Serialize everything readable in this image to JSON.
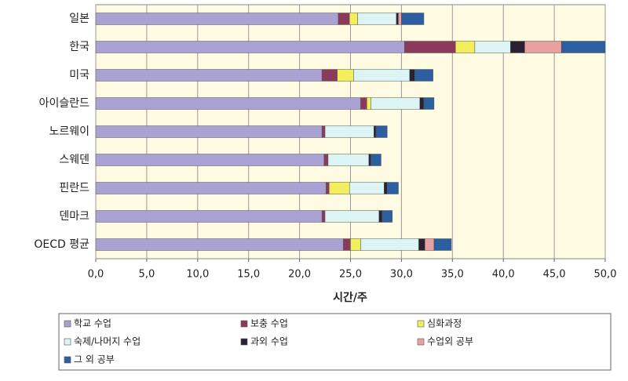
{
  "chart_data": {
    "type": "stacked-bar-horizontal",
    "categories": [
      "일본",
      "한국",
      "미국",
      "아이슬란드",
      "노르웨이",
      "스웨덴",
      "핀란드",
      "덴마크",
      "OECD 평균"
    ],
    "series": [
      {
        "name": "학교 수업",
        "color": "#a9a2d2",
        "values": [
          23.8,
          30.3,
          22.2,
          26.0,
          22.2,
          22.4,
          22.6,
          22.2,
          24.3
        ]
      },
      {
        "name": "보충 수업",
        "color": "#8b3a5c",
        "values": [
          1.1,
          5.0,
          1.5,
          0.6,
          0.3,
          0.4,
          0.3,
          0.3,
          0.7
        ]
      },
      {
        "name": "심화과정",
        "color": "#f3ee5c",
        "values": [
          0.8,
          1.9,
          1.6,
          0.4,
          0,
          0,
          2.0,
          0,
          1.0
        ]
      },
      {
        "name": "숙제/나머지 수업",
        "color": "#dcf4f4",
        "values": [
          3.8,
          3.5,
          5.5,
          4.8,
          4.8,
          4.0,
          3.4,
          5.3,
          5.7
        ]
      },
      {
        "name": "과외 수업",
        "color": "#2a2232",
        "values": [
          0.2,
          1.4,
          0.5,
          0.4,
          0.2,
          0.2,
          0.3,
          0.3,
          0.6
        ]
      },
      {
        "name": "수업외 공부",
        "color": "#e8a0a0",
        "values": [
          0.3,
          3.6,
          0,
          0,
          0,
          0,
          0,
          0,
          0.9
        ]
      },
      {
        "name": "그 외 공부",
        "color": "#2b5f9f",
        "values": [
          2.2,
          4.3,
          1.8,
          1.0,
          1.1,
          1.0,
          1.1,
          1.0,
          1.7
        ]
      }
    ],
    "xlabel": "시간/주",
    "xlim": [
      0,
      50
    ],
    "xticks": [
      {
        "value": 0,
        "label": "0,0"
      },
      {
        "value": 5,
        "label": "5,0"
      },
      {
        "value": 10,
        "label": "10,0"
      },
      {
        "value": 15,
        "label": "15,0"
      },
      {
        "value": 20,
        "label": "20,0"
      },
      {
        "value": 25,
        "label": "25,0"
      },
      {
        "value": 30,
        "label": "30,0"
      },
      {
        "value": 35,
        "label": "35,0"
      },
      {
        "value": 40,
        "label": "40,0"
      },
      {
        "value": 45,
        "label": "45,0"
      },
      {
        "value": 50,
        "label": "50,0"
      }
    ],
    "grid": true,
    "legend": "bottom"
  }
}
